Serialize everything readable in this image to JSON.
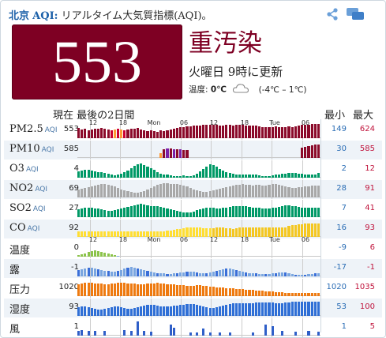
{
  "header": {
    "city": "北京",
    "aqi_label": "AQI:",
    "subtitle": "リアルタイム大気質指標(AQI)。",
    "share_icon": "share-icon",
    "chat_icon": "chat-icon"
  },
  "current": {
    "aqi": "553",
    "level": "重汚染",
    "level_color": "#7e0023",
    "updated": "火曜日 9時に更新"
  },
  "weather": {
    "temp_label": "温度:",
    "temp_value": "0℃",
    "range": "(-4℃ – 1℃)",
    "icon": "cloud-icon"
  },
  "table": {
    "history_header": "現在 最後の2日間",
    "min_header": "最小",
    "max_header": "最大",
    "time_labels": [
      "12",
      "18",
      "Mon",
      "06",
      "12",
      "18",
      "Tue",
      "06"
    ],
    "rows": [
      {
        "name": "PM2.5",
        "unit": "AQI",
        "current": "553",
        "min": "149",
        "max": "624",
        "color": "#8b0a2a",
        "values": [
          0.65,
          0.55,
          0.6,
          0.5,
          0.55,
          0.6,
          0.6,
          0.65,
          0.6,
          0.55,
          0.5,
          0.55,
          0.6,
          0.55,
          0.5,
          0.55,
          0.6,
          0.6,
          0.65,
          0.55,
          0.5,
          0.45,
          0.5,
          0.45,
          0.4,
          0.5,
          0.45,
          0.5,
          0.55,
          0.6,
          0.65,
          0.7,
          0.7,
          0.75,
          0.75,
          0.8,
          0.8,
          0.8,
          0.85,
          0.85,
          0.85,
          0.85,
          0.85,
          0.8,
          0.8,
          0.85,
          0.85,
          0.8,
          0.85,
          0.85,
          0.85,
          0.8,
          0.8,
          0.8,
          0.8,
          0.75,
          0.7,
          0.7,
          0.7,
          0.7,
          0.75,
          0.7,
          0.7,
          0.7,
          0.75,
          0.7,
          0.75,
          0.8,
          0.85,
          0.85,
          0.85,
          0.9,
          0.9,
          0.9
        ]
      },
      {
        "name": "PM10",
        "unit": "AQI",
        "current": "585",
        "min": "30",
        "max": "585",
        "color": "#8b0a2a",
        "values": [
          0,
          0,
          0,
          0,
          0,
          0,
          0,
          0,
          0,
          0,
          0,
          0,
          0,
          0,
          0,
          0,
          0,
          0,
          0,
          0,
          0,
          0,
          0,
          0,
          0,
          0.3,
          0.55,
          0.6,
          0.6,
          0.55,
          0.55,
          0.55,
          0.5,
          0.5,
          0,
          0,
          0,
          0,
          0,
          0,
          0,
          0,
          0,
          0,
          0,
          0,
          0,
          0,
          0,
          0,
          0,
          0,
          0,
          0,
          0,
          0,
          0,
          0,
          0,
          0,
          0,
          0,
          0,
          0,
          0,
          0,
          0,
          0,
          0.65,
          0.7,
          0.75,
          0.8,
          0.85,
          0.85
        ]
      },
      {
        "name": "O3",
        "unit": "AQI",
        "current": "4",
        "min": "2",
        "max": "12",
        "color": "#009966",
        "values": [
          0.4,
          0.45,
          0.5,
          0.5,
          0.45,
          0.4,
          0.35,
          0.35,
          0.3,
          0.25,
          0.2,
          0.15,
          0.2,
          0.25,
          0.35,
          0.45,
          0.6,
          0.75,
          0.85,
          0.9,
          0.8,
          0.7,
          0.6,
          0.5,
          0.35,
          0.25,
          0.2,
          0.2,
          0.15,
          0.1,
          0.1,
          0.1,
          0.15,
          0.1,
          0.1,
          0.15,
          0.25,
          0.4,
          0.55,
          0.7,
          0.85,
          0.8,
          0.7,
          0.55,
          0.45,
          0.35,
          0.3,
          0.25,
          0.2,
          0.2,
          0.2,
          0.2,
          0.2,
          0.2,
          0.2,
          0.15,
          0.1,
          0.1,
          0.1,
          0.15,
          0.2,
          0.2,
          0.25,
          0.25,
          0.3,
          0.3,
          0.3,
          0.25,
          0.25,
          0.2,
          0.2,
          0.2,
          0.2,
          0.3
        ]
      },
      {
        "name": "NO2",
        "unit": "AQI",
        "current": "69",
        "min": "28",
        "max": "91",
        "color": "#a8a8a8",
        "values": [
          0.5,
          0.55,
          0.6,
          0.65,
          0.7,
          0.75,
          0.8,
          0.85,
          0.85,
          0.8,
          0.75,
          0.7,
          0.6,
          0.5,
          0.45,
          0.4,
          0.35,
          0.3,
          0.3,
          0.35,
          0.4,
          0.5,
          0.6,
          0.7,
          0.8,
          0.85,
          0.9,
          0.9,
          0.85,
          0.85,
          0.85,
          0.8,
          0.75,
          0.7,
          0.6,
          0.5,
          0.45,
          0.4,
          0.35,
          0.35,
          0.4,
          0.45,
          0.5,
          0.55,
          0.6,
          0.65,
          0.7,
          0.75,
          0.8,
          0.8,
          0.85,
          0.8,
          0.8,
          0.75,
          0.8,
          0.8,
          0.75,
          0.75,
          0.8,
          0.85,
          0.85,
          0.8,
          0.75,
          0.7,
          0.65,
          0.6,
          0.6,
          0.65,
          0.65,
          0.7,
          0.7,
          0.75,
          0.75,
          0.75
        ]
      },
      {
        "name": "SO2",
        "unit": "AQI",
        "current": "27",
        "min": "7",
        "max": "41",
        "color": "#009966",
        "values": [
          0.5,
          0.55,
          0.6,
          0.6,
          0.6,
          0.55,
          0.55,
          0.5,
          0.45,
          0.4,
          0.4,
          0.45,
          0.5,
          0.55,
          0.6,
          0.65,
          0.7,
          0.75,
          0.8,
          0.85,
          0.8,
          0.75,
          0.7,
          0.7,
          0.7,
          0.65,
          0.6,
          0.55,
          0.5,
          0.45,
          0.4,
          0.35,
          0.3,
          0.3,
          0.3,
          0.35,
          0.45,
          0.5,
          0.55,
          0.6,
          0.6,
          0.6,
          0.55,
          0.55,
          0.6,
          0.6,
          0.65,
          0.7,
          0.7,
          0.7,
          0.7,
          0.7,
          0.65,
          0.6,
          0.6,
          0.6,
          0.55,
          0.55,
          0.55,
          0.6,
          0.6,
          0.65,
          0.7,
          0.75,
          0.75,
          0.7,
          0.7,
          0.65,
          0.6,
          0.6,
          0.6,
          0.6,
          0.6,
          0.6
        ]
      },
      {
        "name": "CO",
        "unit": "AQI",
        "current": "92",
        "min": "16",
        "max": "93",
        "color": "#ffde33",
        "values": [
          0.35,
          0.35,
          0.35,
          0.35,
          0.35,
          0.35,
          0.35,
          0.35,
          0.35,
          0.35,
          0.35,
          0.35,
          0.35,
          0.35,
          0.35,
          0.35,
          0.35,
          0.35,
          0.35,
          0.35,
          0.35,
          0.35,
          0.35,
          0.35,
          0.35,
          0.35,
          0.35,
          0.4,
          0.4,
          0.45,
          0.5,
          0.5,
          0.55,
          0.6,
          0.6,
          0.6,
          0.6,
          0.6,
          0.55,
          0.55,
          0.55,
          0.55,
          0.6,
          0.6,
          0.6,
          0.55,
          0.55,
          0.5,
          0.55,
          0.6,
          0.6,
          0.6,
          0.6,
          0.6,
          0.6,
          0.6,
          0.6,
          0.6,
          0.6,
          0.6,
          0.6,
          0.6,
          0.6,
          0.6,
          0.7,
          0.75,
          0.75,
          0.8,
          0.8,
          0.85,
          0.85,
          0.85,
          0.85,
          0.85
        ]
      },
      {
        "name": "温度",
        "unit": "",
        "current": "0",
        "min": "-9",
        "max": "6",
        "color": "#7aa6e0",
        "values": [
          0.1,
          0.15,
          0.2,
          0.3,
          0.35,
          0.4,
          0.35,
          0.3,
          0.25,
          0.2,
          0.15,
          0.1,
          0.05,
          0,
          0,
          0,
          0,
          0,
          0,
          0,
          0,
          0,
          0,
          0,
          0,
          0,
          0,
          0,
          0,
          0,
          0,
          0,
          0,
          0,
          0,
          0,
          0,
          0,
          0,
          0,
          0,
          0,
          0,
          0,
          0,
          0,
          0,
          0,
          0,
          0,
          0,
          0,
          0,
          0,
          0,
          0,
          0,
          0,
          0,
          0,
          0,
          0,
          0,
          0,
          0,
          0,
          0,
          0,
          0,
          0,
          0,
          0,
          0,
          0
        ]
      },
      {
        "name": "露",
        "unit": "",
        "current": "-1",
        "min": "-17",
        "max": "-1",
        "color": "#3a6fd8",
        "values": [
          0.4,
          0.45,
          0.5,
          0.55,
          0.55,
          0.5,
          0.45,
          0.4,
          0.35,
          0.35,
          0.3,
          0.3,
          0.35,
          0.4,
          0.5,
          0.55,
          0.6,
          0.55,
          0.5,
          0.45,
          0.4,
          0.35,
          0.3,
          0.25,
          0.2,
          0.2,
          0.2,
          0.15,
          0.15,
          0.2,
          0.2,
          0.25,
          0.25,
          0.3,
          0.3,
          0.3,
          0.25,
          0.2,
          0.2,
          0.2,
          0.25,
          0.3,
          0.35,
          0.4,
          0.45,
          0.5,
          0.5,
          0.45,
          0.4,
          0.35,
          0.3,
          0.25,
          0.2,
          0.2,
          0.2,
          0.15,
          0.15,
          0.15,
          0.15,
          0.2,
          0.2,
          0.25,
          0.25,
          0.25,
          0.2,
          0.15,
          0.1,
          0.1,
          0.1,
          0.1,
          0.15,
          0.15,
          0.2,
          0.2
        ]
      },
      {
        "name": "压力",
        "unit": "",
        "current": "1020",
        "min": "1020",
        "max": "1035",
        "color": "#ee7a10",
        "values": [
          0.75,
          0.8,
          0.85,
          0.85,
          0.85,
          0.8,
          0.8,
          0.8,
          0.75,
          0.75,
          0.8,
          0.8,
          0.85,
          0.85,
          0.85,
          0.8,
          0.8,
          0.8,
          0.75,
          0.75,
          0.75,
          0.8,
          0.8,
          0.8,
          0.85,
          0.8,
          0.8,
          0.75,
          0.75,
          0.75,
          0.7,
          0.7,
          0.7,
          0.65,
          0.65,
          0.65,
          0.7,
          0.7,
          0.65,
          0.65,
          0.6,
          0.6,
          0.55,
          0.55,
          0.55,
          0.5,
          0.5,
          0.5,
          0.45,
          0.45,
          0.45,
          0.4,
          0.4,
          0.4,
          0.35,
          0.35,
          0.35,
          0.3,
          0.3,
          0.3,
          0.25,
          0.25,
          0.25,
          0.2,
          0.2,
          0.2,
          0.2,
          0.2,
          0.2,
          0.2,
          0.2,
          0.2,
          0.2,
          0.2
        ]
      },
      {
        "name": "湿度",
        "unit": "",
        "current": "93",
        "min": "53",
        "max": "100",
        "color": "#2f6fd6",
        "values": [
          0.55,
          0.6,
          0.6,
          0.55,
          0.5,
          0.45,
          0.4,
          0.4,
          0.45,
          0.5,
          0.55,
          0.6,
          0.6,
          0.55,
          0.5,
          0.45,
          0.45,
          0.5,
          0.55,
          0.6,
          0.65,
          0.7,
          0.7,
          0.7,
          0.65,
          0.6,
          0.6,
          0.6,
          0.6,
          0.65,
          0.65,
          0.7,
          0.7,
          0.75,
          0.75,
          0.75,
          0.7,
          0.65,
          0.6,
          0.55,
          0.5,
          0.5,
          0.55,
          0.6,
          0.65,
          0.7,
          0.75,
          0.8,
          0.8,
          0.8,
          0.8,
          0.8,
          0.8,
          0.8,
          0.85,
          0.85,
          0.85,
          0.85,
          0.85,
          0.85,
          0.8,
          0.8,
          0.8,
          0.85,
          0.85,
          0.9,
          0.9,
          0.9,
          0.9,
          0.9,
          0.9,
          0.9,
          0.9,
          0.9
        ]
      },
      {
        "name": "風",
        "unit": "",
        "current": "1",
        "min": "1",
        "max": "5",
        "color": "#2f5fc8",
        "values": [
          0.3,
          0.35,
          0,
          0.3,
          0,
          0.3,
          0,
          0,
          0.3,
          0,
          0,
          0,
          0,
          0,
          0.35,
          0,
          0.3,
          0,
          0.9,
          0,
          0.3,
          0,
          0.25,
          0,
          0,
          0,
          0,
          0,
          0.7,
          0.5,
          0,
          0,
          0,
          0,
          0.2,
          0,
          0.2,
          0,
          0.45,
          0,
          0.2,
          0,
          0,
          0.2,
          0,
          0,
          0.2,
          0,
          0,
          0,
          0,
          0,
          0,
          0.2,
          0,
          0,
          0,
          0.7,
          0,
          0.6,
          0,
          0,
          0.3,
          0,
          0,
          0,
          0.25,
          0,
          0,
          0,
          0.3,
          0,
          0,
          0.25
        ]
      }
    ]
  }
}
